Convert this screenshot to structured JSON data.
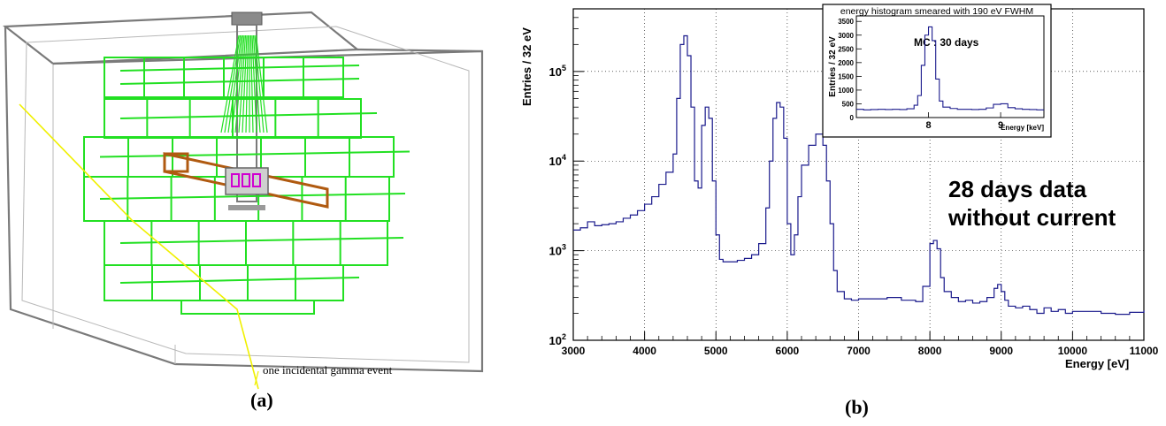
{
  "panel_a": {
    "label": "(a)",
    "callout": "one incidental gamma event",
    "colors": {
      "frame": "#7a7a7a",
      "cells": "#22e022",
      "bar": "#b05a10",
      "detector": "#d000d0",
      "track": "#f0f000"
    }
  },
  "panel_b": {
    "label": "(b)",
    "annotation": [
      "28 days data",
      "without current"
    ]
  },
  "chart_data": [
    {
      "type": "line",
      "title": "",
      "xlabel": "Energy [eV]",
      "ylabel": "Entries / 32 eV",
      "xlim": [
        3000,
        11000
      ],
      "ylim": [
        100,
        500000
      ],
      "yscale": "log",
      "grid": true,
      "line_color": "#1a1a8c",
      "xticks": [
        "3000",
        "4000",
        "5000",
        "6000",
        "7000",
        "8000",
        "9000",
        "10000",
        "11000"
      ],
      "yticks": [
        {
          "base": "10",
          "exp": "2",
          "value": 100
        },
        {
          "base": "10",
          "exp": "3",
          "value": 1000
        },
        {
          "base": "10",
          "exp": "4",
          "value": 10000
        },
        {
          "base": "10",
          "exp": "5",
          "value": 100000
        }
      ],
      "x": [
        3000,
        3100,
        3200,
        3300,
        3400,
        3500,
        3600,
        3700,
        3800,
        3900,
        4000,
        4100,
        4200,
        4300,
        4400,
        4450,
        4500,
        4550,
        4600,
        4650,
        4700,
        4750,
        4800,
        4850,
        4900,
        4950,
        5000,
        5050,
        5100,
        5200,
        5300,
        5400,
        5500,
        5600,
        5700,
        5750,
        5800,
        5850,
        5900,
        5950,
        6000,
        6050,
        6100,
        6150,
        6200,
        6300,
        6400,
        6450,
        6500,
        6550,
        6600,
        6650,
        6700,
        6800,
        6900,
        7000,
        7200,
        7400,
        7600,
        7800,
        7900,
        8000,
        8050,
        8100,
        8150,
        8200,
        8300,
        8400,
        8500,
        8600,
        8700,
        8800,
        8900,
        8950,
        9000,
        9050,
        9100,
        9200,
        9300,
        9400,
        9500,
        9600,
        9700,
        9800,
        9900,
        10000,
        10200,
        10400,
        10600,
        10800,
        11000
      ],
      "y": [
        1700,
        1800,
        2100,
        1900,
        1950,
        2000,
        2100,
        2300,
        2500,
        2800,
        3300,
        4000,
        5500,
        7500,
        12000,
        50000,
        200000,
        250000,
        150000,
        40000,
        6000,
        5000,
        25000,
        40000,
        30000,
        6000,
        1500,
        800,
        750,
        750,
        780,
        820,
        900,
        1200,
        3000,
        10000,
        30000,
        45000,
        40000,
        18000,
        2000,
        900,
        1500,
        4000,
        9000,
        15000,
        20000,
        20000,
        15000,
        6000,
        2000,
        600,
        350,
        290,
        280,
        290,
        290,
        300,
        280,
        270,
        400,
        1200,
        1300,
        1050,
        500,
        350,
        300,
        270,
        280,
        260,
        270,
        300,
        380,
        420,
        350,
        280,
        240,
        230,
        240,
        220,
        200,
        230,
        210,
        220,
        200,
        210,
        210,
        200,
        195,
        205,
        215
      ]
    },
    {
      "type": "line",
      "title": "energy histogram smeared with 190 eV FWHM",
      "xlabel": "Energy [keV]",
      "ylabel": "Entries / 32 eV",
      "xlim": [
        7.0,
        9.6
      ],
      "ylim": [
        0,
        3700
      ],
      "grid": false,
      "line_color": "#1a1a8c",
      "annotation": "MC : 30 days",
      "xticks": [
        "8",
        "9"
      ],
      "yticks": [
        "0",
        "500",
        "1000",
        "1500",
        "2000",
        "2500",
        "3000",
        "3500"
      ],
      "x": [
        7.0,
        7.1,
        7.2,
        7.3,
        7.4,
        7.5,
        7.6,
        7.7,
        7.8,
        7.85,
        7.9,
        7.95,
        8.0,
        8.05,
        8.1,
        8.15,
        8.2,
        8.3,
        8.4,
        8.5,
        8.6,
        8.7,
        8.8,
        8.9,
        9.0,
        9.1,
        9.2,
        9.3,
        9.4,
        9.5,
        9.6
      ],
      "y": [
        300,
        280,
        290,
        300,
        290,
        300,
        290,
        320,
        450,
        800,
        1900,
        3000,
        3300,
        2800,
        1400,
        600,
        380,
        330,
        300,
        300,
        290,
        300,
        350,
        480,
        500,
        360,
        320,
        300,
        290,
        280,
        280
      ]
    }
  ]
}
